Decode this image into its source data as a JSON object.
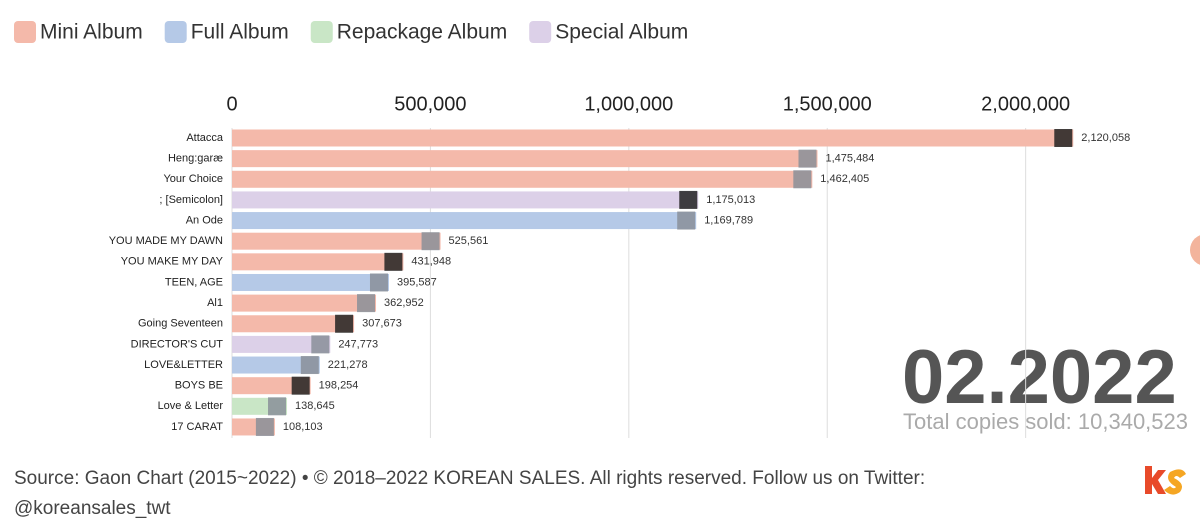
{
  "chart_data": {
    "type": "bar",
    "orientation": "horizontal",
    "legend": [
      {
        "name": "Mini Album",
        "color": "#f4b9aa"
      },
      {
        "name": "Full Album",
        "color": "#b5c9e7"
      },
      {
        "name": "Repackage Album",
        "color": "#c9e6c6"
      },
      {
        "name": "Special Album",
        "color": "#dcd0e8"
      }
    ],
    "categories": [
      "Attacca",
      "Heng:garæ",
      "Your Choice",
      "; [Semicolon]",
      "An Ode",
      "YOU MADE MY DAWN",
      "YOU MAKE MY DAY",
      "TEEN, AGE",
      "Al1",
      "Going Seventeen",
      "DIRECTOR'S CUT",
      "LOVE&LETTER",
      "BOYS BE",
      "Love & Letter",
      "17 CARAT"
    ],
    "album_types": [
      "Mini Album",
      "Mini Album",
      "Mini Album",
      "Special Album",
      "Full Album",
      "Mini Album",
      "Mini Album",
      "Full Album",
      "Mini Album",
      "Mini Album",
      "Special Album",
      "Full Album",
      "Mini Album",
      "Repackage Album",
      "Mini Album"
    ],
    "values": [
      2120058,
      1475484,
      1462405,
      1175013,
      1169789,
      525561,
      431948,
      395587,
      362952,
      307673,
      247773,
      221278,
      198254,
      138645,
      108103
    ],
    "value_labels": [
      "2,120,058",
      "1,475,484",
      "1,462,405",
      "1,175,013",
      "1,169,789",
      "525,561",
      "431,948",
      "395,587",
      "362,952",
      "307,673",
      "247,773",
      "221,278",
      "198,254",
      "138,645",
      "108,103"
    ],
    "xlim": [
      0,
      2200000
    ],
    "xticks": [
      0,
      {
        "value": 500000,
        "label": "500,000"
      },
      {
        "value": 1000000,
        "label": "1,000,000"
      },
      {
        "value": 1500000,
        "label": "1,500,000"
      },
      {
        "value": 2000000,
        "label": "2,000,000"
      }
    ],
    "grid": true,
    "date_label": "02.2022",
    "total_label": "Total copies sold: 10,340,523",
    "source": [
      "Source: Gaon Chart (2015~2022) • © 2018–2022 KOREAN SALES. All rights reserved. Follow us on Twitter:",
      "@koreansales_twt"
    ]
  }
}
